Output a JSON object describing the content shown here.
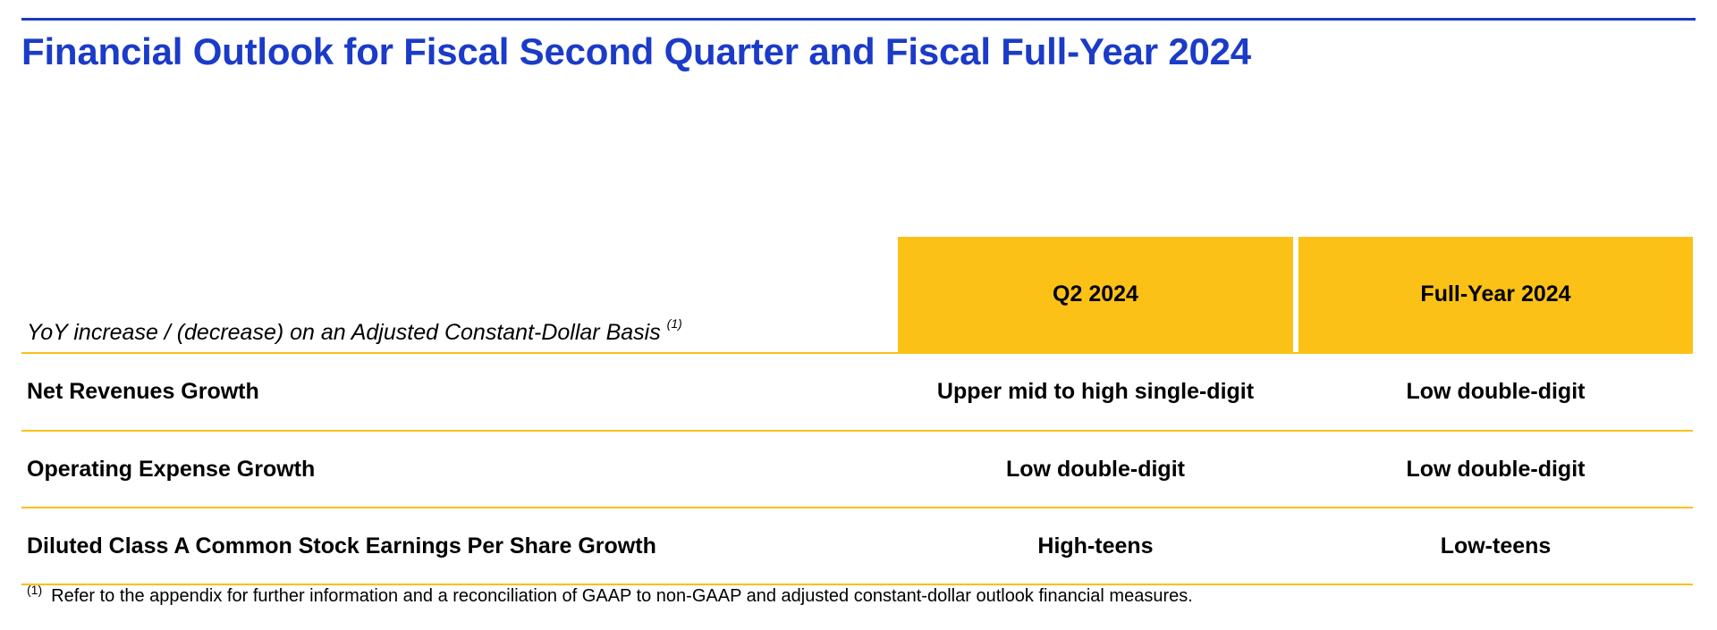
{
  "title": "Financial Outlook for Fiscal Second Quarter and Fiscal Full-Year 2024",
  "table": {
    "basis_label": "YoY increase / (decrease) on an Adjusted Constant-Dollar Basis",
    "basis_footnote_mark": "(1)",
    "columns": [
      "Q2 2024",
      "Full-Year 2024"
    ],
    "rows": [
      {
        "label": "Net Revenues Growth",
        "q2": "Upper mid to high single-digit",
        "full_year": "Low double-digit"
      },
      {
        "label": "Operating Expense Growth",
        "q2": "Low double-digit",
        "full_year": "Low double-digit"
      },
      {
        "label": "Diluted Class A Common Stock Earnings Per Share Growth",
        "q2": "High-teens",
        "full_year": "Low-teens"
      }
    ]
  },
  "footnote": {
    "mark": "(1)",
    "text": "Refer to the appendix for further information and a reconciliation of GAAP to non-GAAP and adjusted constant-dollar outlook financial measures."
  },
  "colors": {
    "title_blue": "#1b3bc8",
    "rule_blue": "#1b3bbd",
    "accent_gold": "#fbc117"
  }
}
